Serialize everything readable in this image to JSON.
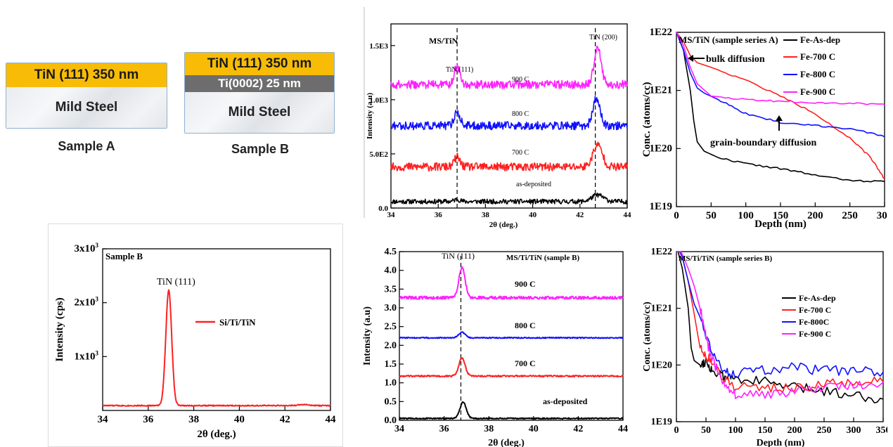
{
  "schematic": {
    "sample_a": {
      "tin_label": "TiN (111) 350 nm",
      "substrate_label": "Mild Steel",
      "caption": "Sample A"
    },
    "sample_b": {
      "tin_label": "TiN (111) 350 nm",
      "ti_label": "Ti(0002) 25 nm",
      "substrate_label": "Mild Steel",
      "caption": "Sample B"
    }
  },
  "colors": {
    "black": "#000000",
    "red": "#ff2020",
    "blue": "#1010ff",
    "magenta": "#ff20ff",
    "tin_layer": "#f8bc06",
    "ti_layer": "#6d6d6d"
  },
  "chart_data": [
    {
      "id": "xrd_a",
      "type": "line",
      "title": "MS/TiN",
      "xlabel": "2θ (deg.)",
      "ylabel": "Intensity (a.u)",
      "xlim": [
        34,
        44
      ],
      "ylim": [
        0,
        1700
      ],
      "xticks": [
        34,
        36,
        38,
        40,
        42,
        44
      ],
      "xtick_labels": [
        "34",
        "36",
        "38",
        "40",
        "42",
        "44"
      ],
      "yticks": [
        0,
        500,
        1000,
        1500
      ],
      "ytick_labels": [
        "0.0",
        "5.0E2",
        "1.0E3",
        "1.5E3"
      ],
      "dashed_lines_x": [
        36.8,
        42.65
      ],
      "annotations": [
        "TiN (111)",
        "TiN (200)"
      ],
      "series": [
        {
          "name": "as-deposited",
          "color": "#000000",
          "baseline": 60,
          "noise": 22,
          "peaks": [
            [
              36.8,
              20,
              0.12
            ],
            [
              42.75,
              60,
              0.25
            ]
          ]
        },
        {
          "name": "700 C",
          "color": "#ff2020",
          "baseline": 380,
          "noise": 38,
          "peaks": [
            [
              36.8,
              90,
              0.12
            ],
            [
              42.75,
              200,
              0.2
            ]
          ]
        },
        {
          "name": "800 C",
          "color": "#1010ff",
          "baseline": 760,
          "noise": 38,
          "peaks": [
            [
              36.8,
              130,
              0.12
            ],
            [
              42.7,
              250,
              0.15
            ]
          ]
        },
        {
          "name": "900 C",
          "color": "#ff20ff",
          "baseline": 1140,
          "noise": 38,
          "peaks": [
            [
              36.8,
              170,
              0.12
            ],
            [
              42.75,
              330,
              0.15
            ]
          ]
        }
      ]
    },
    {
      "id": "sims_a",
      "type": "line",
      "title": "MS/TiN (sample series A)",
      "xlabel": "Depth (nm)",
      "ylabel": "Conc. (atoms/cc)",
      "xlim": [
        0,
        300
      ],
      "ylim": [
        1e+19,
        1e+22
      ],
      "log_y": true,
      "xticks": [
        0,
        50,
        100,
        150,
        200,
        250,
        300
      ],
      "xtick_labels": [
        "0",
        "50",
        "100",
        "150",
        "200",
        "250",
        "300"
      ],
      "yticks": [
        1e+19,
        1e+20,
        1e+21,
        1e+22
      ],
      "ytick_labels": [
        "1E19",
        "1E20",
        "1E21",
        "1E22"
      ],
      "annotations": [
        "bulk diffusion",
        "grain-boundary diffusion"
      ],
      "legend_position": "top-right",
      "series": [
        {
          "name": "Fe-As-dep",
          "color": "#000000",
          "x": [
            0,
            10,
            20,
            25,
            30,
            40,
            60,
            100,
            150,
            200,
            250,
            300
          ],
          "y": [
            1e+22,
            5e+21,
            1e+21,
            3e+20,
            1.3e+20,
            9e+19,
            7e+19,
            5.5e+19,
            4.5e+19,
            3.5e+19,
            2.8e+19,
            2.7e+19
          ]
        },
        {
          "name": "Fe-700 C",
          "color": "#ff2020",
          "x": [
            0,
            10,
            20,
            30,
            50,
            100,
            150,
            200,
            250,
            280,
            300
          ],
          "y": [
            1e+22,
            7e+21,
            4e+21,
            3e+21,
            2.5e+21,
            1.5e+21,
            8e+20,
            4e+20,
            1.5e+20,
            7e+19,
            3e+19
          ]
        },
        {
          "name": "Fe-800 C",
          "color": "#1010ff",
          "x": [
            0,
            10,
            20,
            30,
            40,
            60,
            100,
            150,
            200,
            250,
            300
          ],
          "y": [
            1e+22,
            5e+21,
            2e+21,
            1.1e+21,
            9e+20,
            7e+20,
            4e+20,
            2.8e+20,
            2.5e+20,
            2.2e+20,
            1.6e+20
          ]
        },
        {
          "name": "Fe-900 C",
          "color": "#ff20ff",
          "x": [
            0,
            10,
            20,
            30,
            50,
            100,
            150,
            200,
            250,
            300
          ],
          "y": [
            1e+22,
            6e+21,
            2.5e+21,
            1.3e+21,
            8e+20,
            7e+20,
            6.5e+20,
            6.2e+20,
            6e+20,
            5.8e+20
          ]
        }
      ]
    },
    {
      "id": "xrd_si",
      "type": "line",
      "title": "Sample B",
      "xlabel": "2θ (deg.)",
      "ylabel": "Intensity (cps)",
      "xlim": [
        34,
        44
      ],
      "ylim": [
        0,
        3000
      ],
      "xticks": [
        34,
        36,
        38,
        40,
        42,
        44
      ],
      "xtick_labels": [
        "34",
        "36",
        "38",
        "40",
        "42",
        "44"
      ],
      "yticks": [
        1000,
        2000,
        3000
      ],
      "annotations": [
        "TiN (111)"
      ],
      "legend_position": "right",
      "series": [
        {
          "name": "Si/Ti/TiN",
          "color": "#ff2020",
          "baseline": 90,
          "noise": 10,
          "peaks": [
            [
              36.9,
              2140,
              0.13
            ],
            [
              42.8,
              20,
              0.2
            ]
          ]
        }
      ]
    },
    {
      "id": "xrd_b",
      "type": "line",
      "title": "MS/Ti/TiN (sample B)",
      "xlabel": "2θ (deg.)",
      "ylabel": "Intensity (a.u)",
      "xlim": [
        34,
        44
      ],
      "ylim": [
        0,
        4.5
      ],
      "xticks": [
        34,
        36,
        38,
        40,
        42,
        44
      ],
      "xtick_labels": [
        "34",
        "36",
        "38",
        "40",
        "42",
        "44"
      ],
      "yticks": [
        0,
        0.5,
        1,
        1.5,
        2,
        2.5,
        3,
        3.5,
        4,
        4.5
      ],
      "ytick_labels": [
        "0.0",
        "0.5",
        "1.0",
        "1.5",
        "2.0",
        "2.5",
        "3.0",
        "3.5",
        "4.0",
        "4.5"
      ],
      "dashed_lines_x": [
        36.75
      ],
      "annotations": [
        "TiN (111)"
      ],
      "series": [
        {
          "name": "as-deposited",
          "color": "#000000",
          "baseline": 0.05,
          "noise": 0.015,
          "peaks": [
            [
              36.85,
              0.43,
              0.14
            ]
          ]
        },
        {
          "name": "700 C",
          "color": "#ff2020",
          "baseline": 1.18,
          "noise": 0.02,
          "peaks": [
            [
              36.8,
              0.48,
              0.14
            ]
          ]
        },
        {
          "name": "800 C",
          "color": "#1010ff",
          "baseline": 2.2,
          "noise": 0.015,
          "peaks": [
            [
              36.8,
              0.15,
              0.14
            ]
          ]
        },
        {
          "name": "900 C",
          "color": "#ff20ff",
          "baseline": 3.27,
          "noise": 0.04,
          "peaks": [
            [
              36.8,
              0.8,
              0.14
            ]
          ]
        }
      ]
    },
    {
      "id": "sims_b",
      "type": "line",
      "title": "MS/Ti/TiN (sample series B)",
      "xlabel": "Depth (nm)",
      "ylabel": "Conc. (atoms/cc)",
      "xlim": [
        0,
        350
      ],
      "ylim": [
        1e+19,
        1e+22
      ],
      "log_y": true,
      "xticks": [
        0,
        50,
        100,
        150,
        200,
        250,
        300,
        350
      ],
      "xtick_labels": [
        "0",
        "50",
        "100",
        "150",
        "200",
        "250",
        "300",
        "350"
      ],
      "yticks": [
        1e+19,
        1e+20,
        1e+21,
        1e+22
      ],
      "ytick_labels": [
        "1E19",
        "1E20",
        "1E21",
        "1E22"
      ],
      "legend_position": "right",
      "series": [
        {
          "name": "Fe-As-dep",
          "color": "#000000",
          "x": [
            0,
            10,
            20,
            25,
            30,
            40,
            50,
            60,
            80,
            100,
            150,
            200,
            250,
            300,
            350
          ],
          "y": [
            1.3e+22,
            5e+21,
            1e+21,
            2e+20,
            1.2e+20,
            1e+20,
            1.2e+20,
            8e+19,
            6e+19,
            6e+19,
            5e+19,
            4e+19,
            3.5e+19,
            3e+19,
            2.5e+19
          ]
        },
        {
          "name": "Fe-700 C",
          "color": "#ff2020",
          "x": [
            0,
            10,
            20,
            30,
            40,
            50,
            60,
            80,
            100,
            150,
            200,
            250,
            300,
            350
          ],
          "y": [
            1.3e+22,
            8e+21,
            3e+21,
            8e+20,
            2e+20,
            1.5e+20,
            1.1e+20,
            6e+19,
            4e+19,
            4e+19,
            4e+19,
            4.5e+19,
            5e+19,
            5e+19
          ]
        },
        {
          "name": "Fe-800C",
          "color": "#1010ff",
          "x": [
            0,
            10,
            20,
            30,
            40,
            60,
            80,
            100,
            150,
            200,
            250,
            300,
            350
          ],
          "y": [
            1.3e+22,
            8e+21,
            3e+21,
            1.2e+21,
            7e+20,
            1.5e+20,
            8e+19,
            7e+19,
            8e+19,
            9e+19,
            8e+19,
            8e+19,
            7.5e+19
          ]
        },
        {
          "name": "Fe-900 C",
          "color": "#ff20ff",
          "x": [
            0,
            10,
            20,
            30,
            40,
            50,
            60,
            80,
            100,
            150,
            200,
            250,
            300,
            350
          ],
          "y": [
            1.3e+22,
            9e+21,
            5e+21,
            2.5e+21,
            1e+21,
            3e+20,
            1.3e+20,
            5e+19,
            3e+19,
            3e+19,
            3.5e+19,
            4e+19,
            4.5e+19,
            5e+19
          ]
        }
      ]
    }
  ]
}
